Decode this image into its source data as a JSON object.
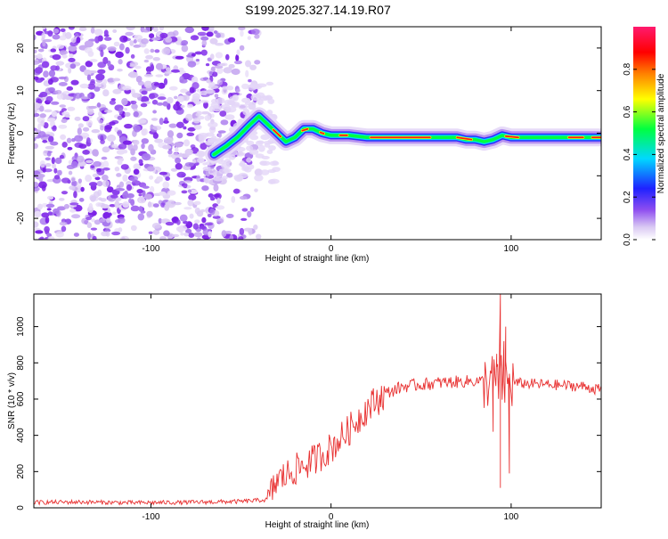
{
  "title": "S199.2025.327.14.19.R07",
  "colors": {
    "frame": "#000000",
    "snr_line": "#e83030",
    "spectrogram_noise": "#8a2be2",
    "colormap": [
      "#ffffff",
      "#d9c8f3",
      "#8e4ef0",
      "#1f22ff",
      "#00d8ff",
      "#00ff40",
      "#ffff00",
      "#ff8000",
      "#ff0000",
      "#ff1a6e"
    ]
  },
  "chart_data": [
    {
      "type": "heatmap",
      "xlabel": "Height of straight line (km)",
      "ylabel": "Frequency (Hz)",
      "xlim": [
        -165,
        150
      ],
      "ylim": [
        -25,
        25
      ],
      "x_ticks": [
        -100,
        0,
        100
      ],
      "y_ticks": [
        -20,
        -10,
        0,
        10,
        20
      ],
      "colorbar": {
        "label": "Normalized spectral amplitude",
        "range": [
          0,
          1
        ],
        "ticks": [
          "0.0",
          "0.2",
          "0.4",
          "0.6",
          "0.8"
        ]
      },
      "noise_region_x": [
        -165,
        -40
      ],
      "ridge": {
        "x": [
          -65,
          -58,
          -52,
          -45,
          -40,
          -35,
          -30,
          -25,
          -20,
          -15,
          -10,
          -5,
          0,
          10,
          20,
          30,
          40,
          50,
          60,
          70,
          75,
          80,
          85,
          90,
          95,
          100,
          110,
          120,
          130,
          140,
          150
        ],
        "frequency": [
          -5,
          -3,
          -1,
          2,
          4,
          2,
          0,
          -2,
          -1,
          1,
          1,
          0,
          -0.5,
          -0.5,
          -1,
          -1,
          -1,
          -1,
          -1,
          -1,
          -1.5,
          -1.5,
          -2,
          -1.5,
          -0.5,
          -1,
          -1,
          -1,
          -1,
          -1,
          -1
        ]
      }
    },
    {
      "type": "line",
      "xlabel": "Height of straight line (km)",
      "ylabel": "SNR (10 * v/v)",
      "xlim": [
        -165,
        150
      ],
      "ylim": [
        0,
        1180
      ],
      "x_ticks": [
        -100,
        0,
        100
      ],
      "y_ticks": [
        0,
        200,
        400,
        600,
        800,
        1000
      ],
      "trend": {
        "x": [
          -165,
          -140,
          -110,
          -80,
          -50,
          -35,
          -30,
          -20,
          -10,
          0,
          10,
          20,
          30,
          40,
          60,
          80,
          100,
          120,
          140,
          150
        ],
        "snr": [
          30,
          32,
          28,
          30,
          35,
          45,
          150,
          210,
          260,
          330,
          430,
          550,
          630,
          670,
          690,
          700,
          690,
          680,
          670,
          650
        ]
      },
      "spikes": [
        {
          "x": 92,
          "snr": 850
        },
        {
          "x": 94,
          "snr": 1180
        },
        {
          "x": 94,
          "snr": 110
        },
        {
          "x": 97,
          "snr": 1000
        },
        {
          "x": 99,
          "snr": 190
        },
        {
          "x": 96,
          "snr": 920
        },
        {
          "x": 90,
          "snr": 420
        }
      ]
    }
  ]
}
